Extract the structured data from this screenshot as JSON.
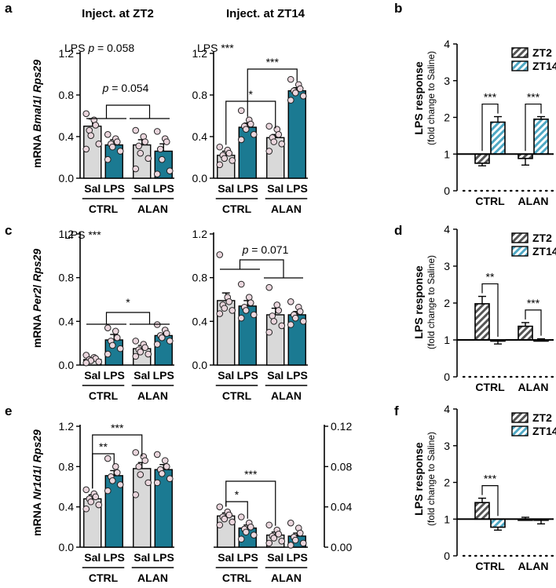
{
  "figure": {
    "panel_letters": [
      "a",
      "b",
      "c",
      "d",
      "e",
      "f"
    ],
    "column_titles": [
      "Inject. at ZT2",
      "Inject. at ZT14"
    ],
    "mrna_labels": {
      "a": {
        "prefix": "mRNA ",
        "gene": "Bmal1",
        "sep": "/ ",
        "ref": "Rps29"
      },
      "c": {
        "prefix": "mRNA ",
        "gene": "Per2",
        "sep": "/ ",
        "ref": "Rps29"
      },
      "e": {
        "prefix": "mRNA ",
        "gene": "Nr1d1",
        "sep": "/ ",
        "ref": "Rps29"
      }
    },
    "response_label": {
      "main": "LPS response",
      "sub": "(fold change to Saline)"
    },
    "colors": {
      "saline": "#d9d9d9",
      "lps": "#1b7a92",
      "dot": "#ead6dd",
      "zt14": "#4fa8c4"
    }
  },
  "chart_data": [
    {
      "id": "a-zt2",
      "type": "bar",
      "panel": "a",
      "categories": [
        "Sal",
        "LPS",
        "Sal",
        "LPS"
      ],
      "groups": [
        "CTRL",
        "ALAN"
      ],
      "values": [
        0.5,
        0.32,
        0.32,
        0.26
      ],
      "errors": [
        0.07,
        0.05,
        0.05,
        0.07
      ],
      "points": [
        [
          0.62,
          0.56,
          0.51,
          0.46,
          0.41,
          0.33,
          0.28
        ],
        [
          0.42,
          0.38,
          0.35,
          0.33,
          0.3,
          0.26,
          0.18
        ],
        [
          0.46,
          0.4,
          0.35,
          0.31,
          0.24,
          0.19,
          0.09
        ],
        [
          0.45,
          0.38,
          0.35,
          0.28,
          0.18,
          0.07,
          0.04
        ]
      ],
      "ylim": [
        0,
        1.2
      ],
      "yticks": [
        "0.0",
        "0.4",
        "0.8",
        "1.2"
      ],
      "annotations": [
        {
          "text": "LPS ",
          "italic": "p",
          "rest": " = 0.058"
        },
        {
          "italic": "p",
          "rest": " = 0.054"
        }
      ]
    },
    {
      "id": "a-zt14",
      "type": "bar",
      "panel": "a",
      "categories": [
        "Sal",
        "LPS",
        "Sal",
        "LPS"
      ],
      "groups": [
        "CTRL",
        "ALAN"
      ],
      "values": [
        0.22,
        0.49,
        0.39,
        0.84
      ],
      "errors": [
        0.04,
        0.04,
        0.03,
        0.03
      ],
      "points": [
        [
          0.3,
          0.27,
          0.24,
          0.22,
          0.19,
          0.17,
          0.13
        ],
        [
          0.65,
          0.56,
          0.52,
          0.5,
          0.47,
          0.42,
          0.37
        ],
        [
          0.5,
          0.47,
          0.42,
          0.39,
          0.35,
          0.33,
          0.26
        ],
        [
          0.95,
          0.9,
          0.86,
          0.84,
          0.82,
          0.79,
          0.75
        ]
      ],
      "ylim": [
        0,
        1.2
      ],
      "yticks": [
        "0.0",
        "0.4",
        "0.8",
        "1.2"
      ],
      "annotations": [
        {
          "text": "LPS ***"
        },
        {
          "text": "***"
        },
        {
          "text": "*"
        }
      ]
    },
    {
      "id": "b",
      "type": "bar",
      "panel": "b",
      "groups": [
        "CTRL",
        "ALAN"
      ],
      "legend": [
        "ZT2",
        "ZT14"
      ],
      "series": [
        {
          "name": "ZT2",
          "values": [
            0.75,
            0.88
          ],
          "errors": [
            0.07,
            0.18
          ]
        },
        {
          "name": "ZT14",
          "values": [
            1.87,
            1.95
          ],
          "errors": [
            0.15,
            0.07
          ]
        }
      ],
      "baseline": 1,
      "ylim": [
        0,
        4
      ],
      "yticks": [
        "0",
        "1",
        "2",
        "3",
        "4"
      ],
      "annotations": [
        {
          "text": "***"
        },
        {
          "text": "***"
        }
      ]
    },
    {
      "id": "c-zt2",
      "type": "bar",
      "panel": "c",
      "categories": [
        "Sal",
        "LPS",
        "Sal",
        "LPS"
      ],
      "groups": [
        "CTRL",
        "ALAN"
      ],
      "values": [
        0.05,
        0.23,
        0.15,
        0.27
      ],
      "errors": [
        0.01,
        0.05,
        0.03,
        0.02
      ],
      "points": [
        [
          0.09,
          0.07,
          0.06,
          0.05,
          0.04,
          0.03,
          0.02
        ],
        [
          0.34,
          0.31,
          0.25,
          0.22,
          0.18,
          0.15,
          0.1
        ],
        [
          0.22,
          0.19,
          0.16,
          0.14,
          0.12,
          0.1,
          0.08
        ],
        [
          0.37,
          0.32,
          0.29,
          0.27,
          0.25,
          0.22,
          0.19
        ]
      ],
      "ylim": [
        0,
        1.2
      ],
      "yticks": [
        "0.0",
        "0.4",
        "0.8",
        "1.2"
      ],
      "annotations": [
        {
          "text": "LPS ***"
        },
        {
          "text": "*"
        }
      ]
    },
    {
      "id": "c-zt14",
      "type": "bar",
      "panel": "c",
      "categories": [
        "Sal",
        "LPS",
        "Sal",
        "LPS"
      ],
      "groups": [
        "CTRL",
        "ALAN"
      ],
      "values": [
        0.59,
        0.54,
        0.46,
        0.46
      ],
      "errors": [
        0.07,
        0.05,
        0.06,
        0.03
      ],
      "points": [
        [
          1.01,
          0.62,
          0.58,
          0.55,
          0.52,
          0.5,
          0.47
        ],
        [
          0.74,
          0.62,
          0.57,
          0.53,
          0.5,
          0.46,
          0.43
        ],
        [
          0.71,
          0.55,
          0.5,
          0.45,
          0.4,
          0.36,
          0.3
        ],
        [
          0.58,
          0.53,
          0.49,
          0.46,
          0.43,
          0.4,
          0.37
        ]
      ],
      "ylim": [
        0,
        1.2
      ],
      "yticks": [
        "0.0",
        "0.4",
        "0.8",
        "1.2"
      ],
      "annotations": [
        {
          "italic": "p",
          "rest": " = 0.071"
        }
      ]
    },
    {
      "id": "d",
      "type": "bar",
      "panel": "d",
      "groups": [
        "CTRL",
        "ALAN"
      ],
      "legend": [
        "ZT2",
        "ZT14"
      ],
      "series": [
        {
          "name": "ZT2",
          "values": [
            1.98,
            1.37
          ],
          "errors": [
            0.2,
            0.1
          ]
        },
        {
          "name": "ZT14",
          "values": [
            0.97,
            1.0
          ],
          "errors": [
            0.08,
            0.03
          ]
        }
      ],
      "baseline": 1,
      "ylim": [
        0,
        4
      ],
      "yticks": [
        "0",
        "1",
        "2",
        "3",
        "4"
      ],
      "annotations": [
        {
          "text": "**"
        },
        {
          "text": "***"
        }
      ]
    },
    {
      "id": "e-zt2",
      "type": "bar",
      "panel": "e",
      "categories": [
        "Sal",
        "LPS",
        "Sal",
        "LPS"
      ],
      "groups": [
        "CTRL",
        "ALAN"
      ],
      "values": [
        0.48,
        0.71,
        0.78,
        0.77
      ],
      "errors": [
        0.04,
        0.05,
        0.06,
        0.05
      ],
      "points": [
        [
          0.57,
          0.53,
          0.5,
          0.48,
          0.45,
          0.42,
          0.38
        ],
        [
          0.88,
          0.8,
          0.74,
          0.7,
          0.66,
          0.62,
          0.56
        ],
        [
          0.94,
          0.9,
          0.86,
          0.8,
          0.72,
          0.64,
          0.52
        ],
        [
          0.92,
          0.86,
          0.8,
          0.77,
          0.73,
          0.68,
          0.64
        ]
      ],
      "ylim": [
        0,
        1.2
      ],
      "yticks": [
        "0.0",
        "0.4",
        "0.8",
        "1.2"
      ],
      "annotations": [
        {
          "text": "**"
        },
        {
          "text": "***"
        }
      ]
    },
    {
      "id": "e-zt14",
      "type": "bar",
      "panel": "e",
      "categories": [
        "Sal",
        "LPS",
        "Sal",
        "LPS"
      ],
      "groups": [
        "CTRL",
        "ALAN"
      ],
      "values": [
        0.031,
        0.019,
        0.012,
        0.011
      ],
      "errors": [
        0.003,
        0.003,
        0.003,
        0.003
      ],
      "points": [
        [
          0.04,
          0.035,
          0.032,
          0.03,
          0.028,
          0.025,
          0.022
        ],
        [
          0.03,
          0.024,
          0.02,
          0.018,
          0.015,
          0.012,
          0.008
        ],
        [
          0.022,
          0.017,
          0.013,
          0.011,
          0.009,
          0.006,
          0.004
        ],
        [
          0.024,
          0.019,
          0.014,
          0.01,
          0.007,
          0.004,
          0.002
        ]
      ],
      "ylim": [
        0,
        0.12
      ],
      "yticks": [
        "0.00",
        "0.04",
        "0.08",
        "0.12"
      ],
      "annotations": [
        {
          "text": "*"
        },
        {
          "text": "***"
        }
      ]
    },
    {
      "id": "f",
      "type": "bar",
      "panel": "f",
      "groups": [
        "CTRL",
        "ALAN"
      ],
      "legend": [
        "ZT2",
        "ZT14"
      ],
      "series": [
        {
          "name": "ZT2",
          "values": [
            1.45,
            1.0
          ],
          "errors": [
            0.12,
            0.05
          ]
        },
        {
          "name": "ZT14",
          "values": [
            0.78,
            0.97
          ],
          "errors": [
            0.08,
            0.1
          ]
        }
      ],
      "baseline": 1,
      "ylim": [
        0,
        4
      ],
      "yticks": [
        "0",
        "1",
        "2",
        "3",
        "4"
      ],
      "annotations": [
        {
          "text": "***"
        }
      ]
    }
  ]
}
